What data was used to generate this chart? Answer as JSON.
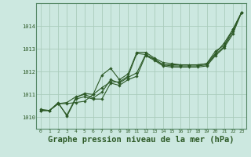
{
  "background_color": "#cce8e0",
  "grid_color": "#aaccbb",
  "line_color": "#2d5a27",
  "marker_color": "#2d5a27",
  "xlabel": "Graphe pression niveau de la mer (hPa)",
  "xlabel_fontsize": 7.5,
  "xlim": [
    -0.5,
    23.5
  ],
  "ylim": [
    1009.5,
    1015.0
  ],
  "yticks": [
    1010,
    1011,
    1012,
    1013,
    1014
  ],
  "xticks": [
    0,
    1,
    2,
    3,
    4,
    5,
    6,
    7,
    8,
    9,
    10,
    11,
    12,
    13,
    14,
    15,
    16,
    17,
    18,
    19,
    20,
    21,
    22,
    23
  ],
  "series": [
    [
      1010.3,
      1010.3,
      1010.6,
      1010.6,
      1010.65,
      1010.7,
      1011.0,
      1011.3,
      1011.55,
      1011.55,
      1011.8,
      1012.8,
      1012.75,
      1012.55,
      1012.3,
      1012.3,
      1012.3,
      1012.3,
      1012.3,
      1012.35,
      1012.9,
      1013.15,
      1013.85,
      1014.6
    ],
    [
      1010.3,
      1010.3,
      1010.6,
      1010.1,
      1010.85,
      1011.05,
      1011.0,
      1011.85,
      1012.15,
      1011.65,
      1011.9,
      1012.85,
      1012.85,
      1012.6,
      1012.4,
      1012.35,
      1012.3,
      1012.3,
      1012.3,
      1012.35,
      1012.8,
      1013.25,
      1013.85,
      1014.6
    ],
    [
      1010.3,
      1010.3,
      1010.6,
      1010.65,
      1010.9,
      1011.0,
      1010.85,
      1011.1,
      1011.65,
      1011.5,
      1011.75,
      1011.95,
      1012.75,
      1012.55,
      1012.3,
      1012.25,
      1012.25,
      1012.25,
      1012.25,
      1012.3,
      1012.75,
      1013.1,
      1013.75,
      1014.6
    ],
    [
      1010.35,
      1010.3,
      1010.65,
      1010.05,
      1010.8,
      1010.9,
      1010.8,
      1010.8,
      1011.5,
      1011.4,
      1011.65,
      1011.8,
      1012.7,
      1012.5,
      1012.25,
      1012.2,
      1012.2,
      1012.2,
      1012.2,
      1012.25,
      1012.7,
      1013.05,
      1013.65,
      1014.6
    ]
  ]
}
